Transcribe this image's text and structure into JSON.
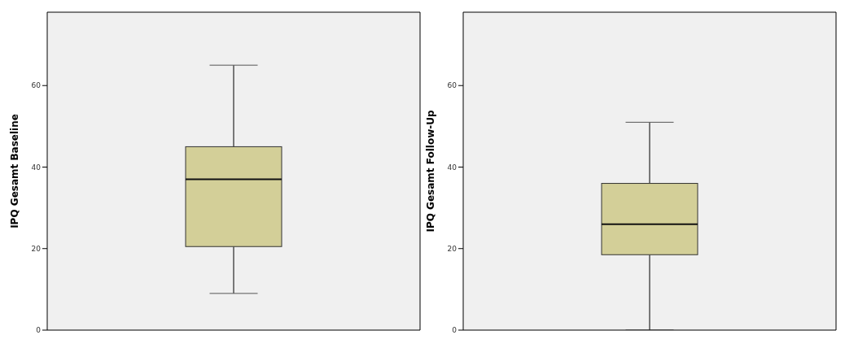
{
  "chart_data": [
    {
      "type": "box",
      "ylabel": "IPQ Gesamt Baseline",
      "categories": [
        null
      ],
      "color": "#d3cf98",
      "boxes": [
        {
          "low": 9,
          "q1": 20.5,
          "median": 37,
          "q3": 45,
          "high": 65
        }
      ],
      "ylim": [
        0,
        78
      ],
      "yticks": [
        0,
        20,
        40,
        60
      ],
      "grid": false,
      "tick_labels": "y"
    },
    {
      "type": "box",
      "ylabel": "IPQ Gesamt Follow-Up",
      "categories": [
        null
      ],
      "color": "#d3cf98",
      "boxes": [
        {
          "low": 0,
          "q1": 18.5,
          "median": 26,
          "q3": 36,
          "high": 51
        }
      ],
      "ylim": [
        0,
        78
      ],
      "yticks": [
        0,
        20,
        40,
        60
      ],
      "grid": false,
      "tick_labels": "y"
    }
  ]
}
